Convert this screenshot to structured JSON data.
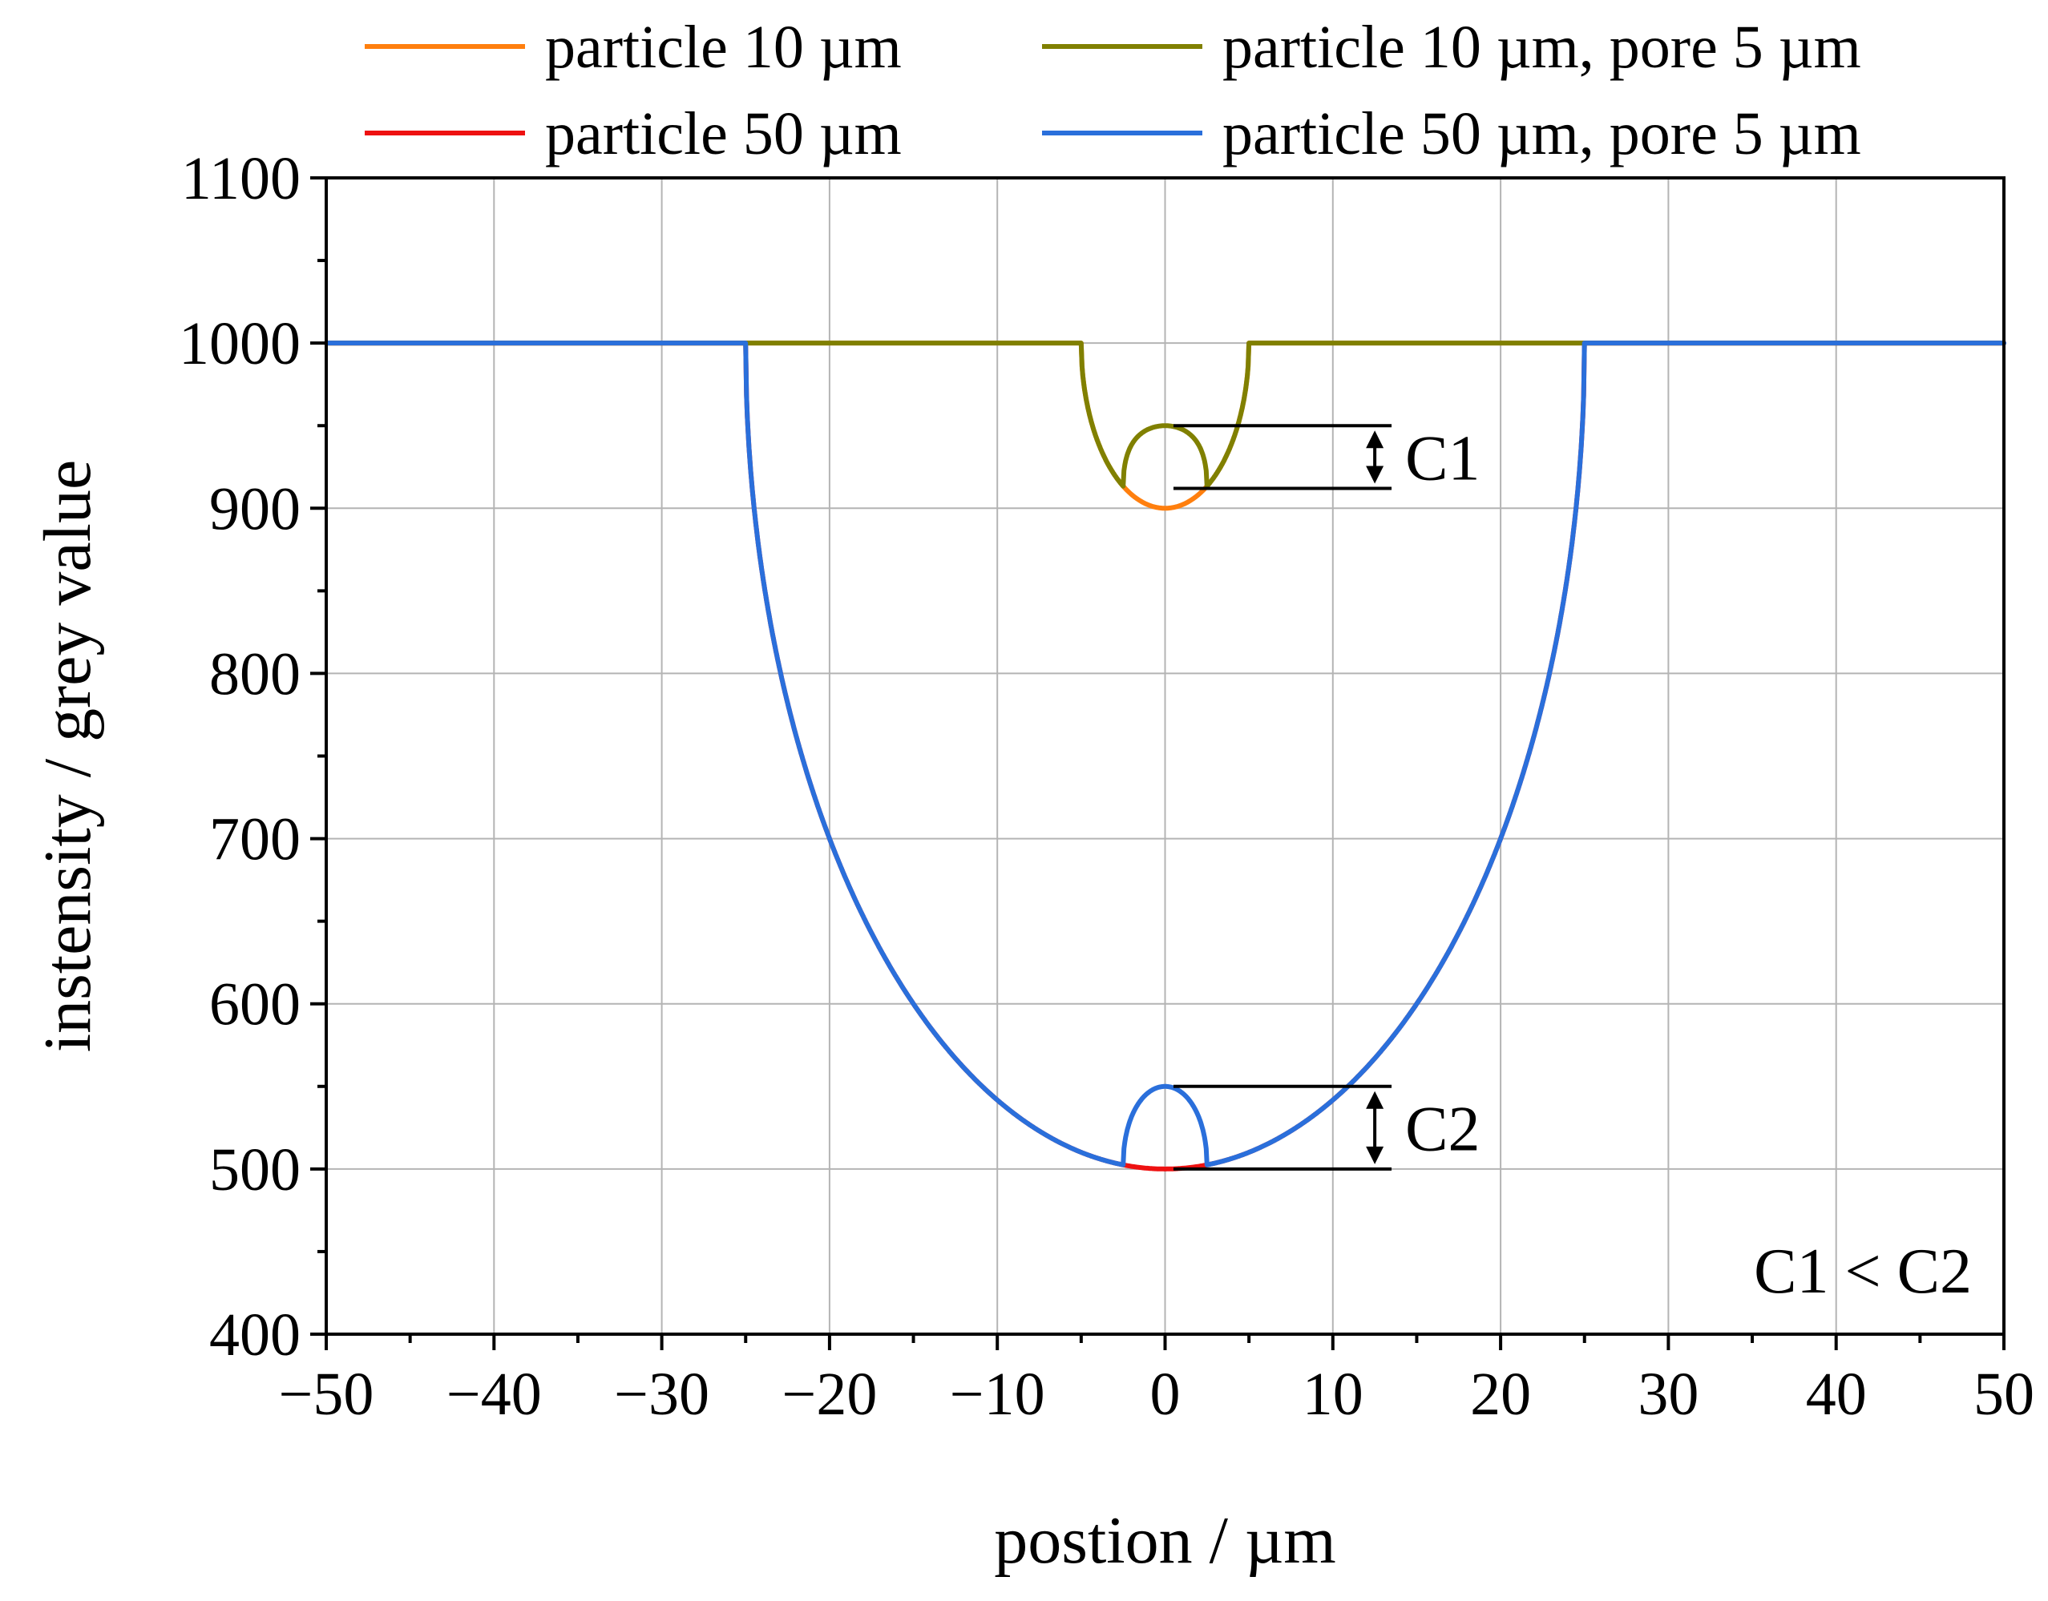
{
  "chart_data": {
    "type": "line",
    "title": "",
    "xlabel": "postion / µm",
    "ylabel": "instensity / grey value",
    "xlim": [
      -50,
      50
    ],
    "ylim": [
      400,
      1100
    ],
    "x_ticks": [
      -50,
      -40,
      -30,
      -20,
      -10,
      0,
      10,
      20,
      30,
      40,
      50
    ],
    "x_tick_labels": [
      "−50",
      "−40",
      "−30",
      "−20",
      "−10",
      "0",
      "10",
      "20",
      "30",
      "40",
      "50"
    ],
    "y_ticks": [
      400,
      500,
      600,
      700,
      800,
      900,
      1000,
      1100
    ],
    "y_tick_labels": [
      "400",
      "500",
      "600",
      "700",
      "800",
      "900",
      "1000",
      "1100"
    ],
    "grid": true,
    "legend_position": "top",
    "series": [
      {
        "name": "particle 10 µm",
        "color": "#ff7f0e",
        "baseline": 1000,
        "center": 0,
        "radius": 5,
        "depth": 100
      },
      {
        "name": "particle 50 µm",
        "color": "#ee1111",
        "baseline": 1000,
        "center": 0,
        "radius": 25,
        "depth": 500
      },
      {
        "name": "particle 10 µm, pore 5 µm",
        "color": "#808000",
        "baseline": 1000,
        "center": 0,
        "radius": 5,
        "depth": 100,
        "pore_radius": 2.5,
        "pore_depth": 50
      },
      {
        "name": "particle 50 µm, pore 5 µm",
        "color": "#2a6fdb",
        "baseline": 1000,
        "center": 0,
        "radius": 25,
        "depth": 500,
        "pore_radius": 2.5,
        "pore_depth": 50
      }
    ],
    "annotations": [
      {
        "label": "C1",
        "y_top": 950,
        "y_bottom": 912,
        "x_start": 0.5,
        "x_end": 13.5
      },
      {
        "label": "C2",
        "y_top": 550,
        "y_bottom": 500,
        "x_start": 0.5,
        "x_end": 13.5
      }
    ],
    "note": "C1 < C2"
  }
}
